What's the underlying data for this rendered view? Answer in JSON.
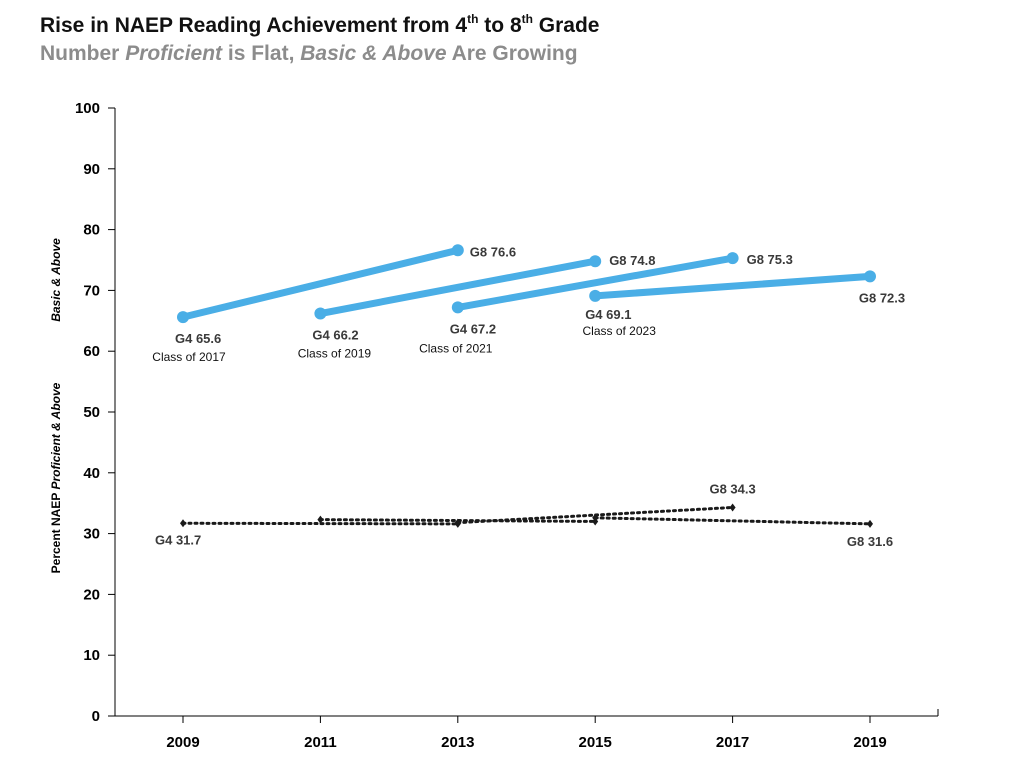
{
  "title": {
    "prefix": "Rise in NAEP Reading Achievement from 4",
    "sup1": "th",
    "mid": " to 8",
    "sup2": "th",
    "suffix": " Grade"
  },
  "subtitle": {
    "p1": "Number ",
    "e1": "Proficient",
    "p2": " is Flat, ",
    "e2": "Basic & Above",
    "p3": " Are Growing"
  },
  "chart_data": {
    "type": "line",
    "title": "Rise in NAEP Reading Achievement from 4th to 8th Grade",
    "subtitle": "Number Proficient is Flat, Basic & Above Are Growing",
    "xlabel": "",
    "ylabel": {
      "prefix": "Percent NAEP ",
      "italic": "Proficient & Above"
    },
    "ylabel_upper": "Basic & Above",
    "categories": [
      "2009",
      "2011",
      "2013",
      "2015",
      "2017",
      "2019"
    ],
    "ylim": [
      0,
      100
    ],
    "yticks": [
      0,
      10,
      20,
      30,
      40,
      50,
      60,
      70,
      80,
      90,
      100
    ],
    "color_basic": "#4aaee6",
    "color_proficient": "#1a1a1a",
    "series": [
      {
        "name": "Class of 2017 Basic & Above",
        "group": "basic",
        "x": [
          "2009",
          "2013"
        ],
        "values": [
          65.6,
          76.6
        ],
        "labels": [
          "G4 65.6",
          "G8 76.6"
        ],
        "class_label": "Class of 2017"
      },
      {
        "name": "Class of 2019 Basic & Above",
        "group": "basic",
        "x": [
          "2011",
          "2015"
        ],
        "values": [
          66.2,
          74.8
        ],
        "labels": [
          "G4 66.2",
          "G8 74.8"
        ],
        "class_label": "Class of 2019"
      },
      {
        "name": "Class of 2021 Basic & Above",
        "group": "basic",
        "x": [
          "2013",
          "2017"
        ],
        "values": [
          67.2,
          75.3
        ],
        "labels": [
          "G4 67.2",
          "G8 75.3"
        ],
        "class_label": "Class of 2021"
      },
      {
        "name": "Class of 2023 Basic & Above",
        "group": "basic",
        "x": [
          "2015",
          "2019"
        ],
        "values": [
          69.1,
          72.3
        ],
        "labels": [
          "G4 69.1",
          "G8 72.3"
        ],
        "class_label": "Class of 2023"
      },
      {
        "name": "Class of 2017 Proficient & Above",
        "group": "proficient",
        "x": [
          "2009",
          "2013"
        ],
        "values": [
          31.7,
          31.6
        ],
        "labels": [
          "G4 31.7",
          ""
        ]
      },
      {
        "name": "Class of 2019 Proficient & Above",
        "group": "proficient",
        "x": [
          "2011",
          "2015"
        ],
        "values": [
          32.3,
          32.0
        ],
        "labels": [
          "",
          ""
        ]
      },
      {
        "name": "Class of 2021 Proficient & Above",
        "group": "proficient",
        "x": [
          "2013",
          "2017"
        ],
        "values": [
          31.8,
          34.3
        ],
        "labels": [
          "",
          "G8 34.3"
        ]
      },
      {
        "name": "Class of 2023 Proficient & Above",
        "group": "proficient",
        "x": [
          "2015",
          "2019"
        ],
        "values": [
          32.6,
          31.6
        ],
        "labels": [
          "",
          "G8 31.6"
        ]
      }
    ]
  }
}
